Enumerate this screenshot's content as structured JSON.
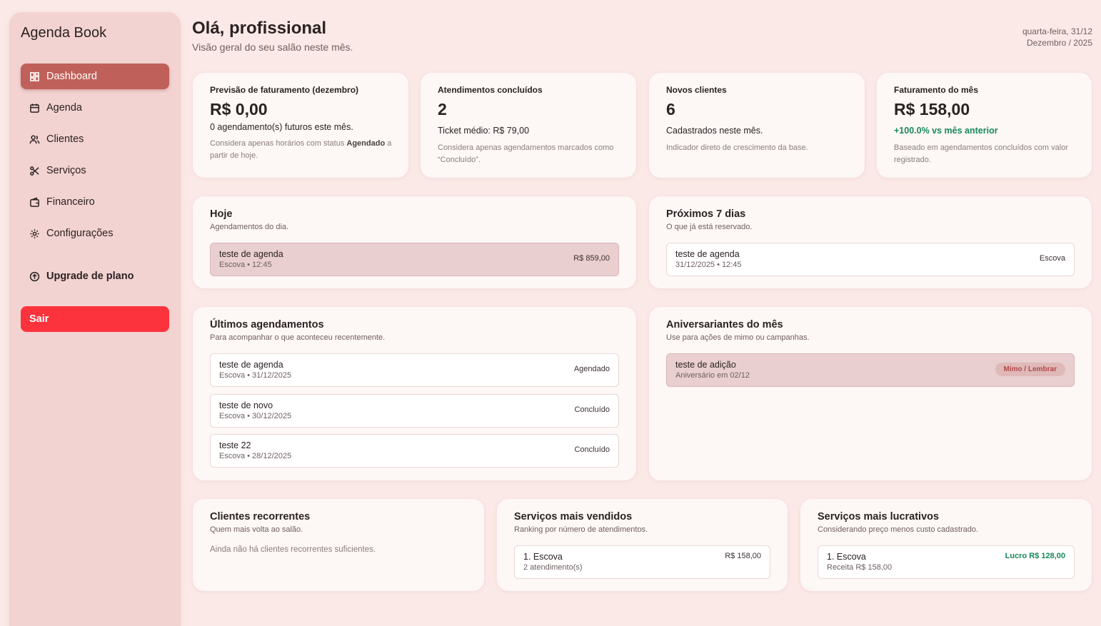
{
  "sidebar": {
    "brand": "Agenda Book",
    "nav": [
      "Dashboard",
      "Agenda",
      "Clientes",
      "Serviços",
      "Financeiro",
      "Configurações"
    ],
    "upgrade": "Upgrade de plano",
    "logout": "Sair"
  },
  "header": {
    "title": "Olá, profissional",
    "subtitle": "Visão geral do seu salão neste mês.",
    "weekday_date": "quarta-feira, 31/12",
    "month": "Dezembro / 2025"
  },
  "stats": [
    {
      "label": "Previsão de faturamento (dezembro)",
      "value": "R$ 0,00",
      "detail": "0 agendamento(s) futuros este mês.",
      "note": [
        "Considera apenas horários com status ",
        "Agendado",
        " a partir de hoje."
      ]
    },
    {
      "label": "Atendimentos concluídos",
      "value": "2",
      "detail": "Ticket médio: R$ 79,00",
      "note": [
        "Considera apenas agendamentos marcados como “Concluído”."
      ]
    },
    {
      "label": "Novos clientes",
      "value": "6",
      "detail": "Cadastrados neste mês.",
      "note": [
        "Indicador direto de crescimento da base."
      ]
    },
    {
      "label": "Faturamento do mês",
      "value": "R$ 158,00",
      "detail": "+100.0% vs mês anterior",
      "note": [
        "Baseado em agendamentos concluídos com valor registrado."
      ]
    }
  ],
  "panels": {
    "today": {
      "title": "Hoje",
      "subtitle": "Agendamentos do dia.",
      "items": [
        {
          "name": "teste de agenda",
          "meta": "Escova • 12:45",
          "right": "R$ 859,00"
        }
      ]
    },
    "next7": {
      "title": "Próximos 7 dias",
      "subtitle": "O que já está reservado.",
      "items": [
        {
          "name": "teste de agenda",
          "meta": "31/12/2025 • 12:45",
          "right": "Escova"
        }
      ]
    },
    "latest": {
      "title": "Últimos agendamentos",
      "subtitle": "Para acompanhar o que aconteceu recentemente.",
      "items": [
        {
          "name": "teste de agenda",
          "meta": "Escova • 31/12/2025",
          "right": "Agendado"
        },
        {
          "name": "teste de novo",
          "meta": "Escova • 30/12/2025",
          "right": "Concluído"
        },
        {
          "name": "teste 22",
          "meta": "Escova • 28/12/2025",
          "right": "Concluído"
        }
      ]
    },
    "birthdays": {
      "title": "Aniversariantes do mês",
      "subtitle": "Use para ações de mimo ou campanhas.",
      "items": [
        {
          "name": "teste de adição",
          "meta": "Aniversário em 02/12",
          "right": "Mimo / Lembrar"
        }
      ]
    },
    "recurring": {
      "title": "Clientes recorrentes",
      "subtitle": "Quem mais volta ao salão.",
      "empty": "Ainda não há clientes recorrentes suficientes."
    },
    "top_sold": {
      "title": "Serviços mais vendidos",
      "subtitle": "Ranking por número de atendimentos.",
      "items": [
        {
          "name": "1. Escova",
          "meta": "2 atendimento(s)",
          "right": "R$ 158,00"
        }
      ]
    },
    "top_profit": {
      "title": "Serviços mais lucrativos",
      "subtitle": "Considerando preço menos custo cadastrado.",
      "items": [
        {
          "name": "1. Escova",
          "meta": "Receita R$ 158,00",
          "right": "Lucro R$ 128,00"
        }
      ]
    }
  }
}
